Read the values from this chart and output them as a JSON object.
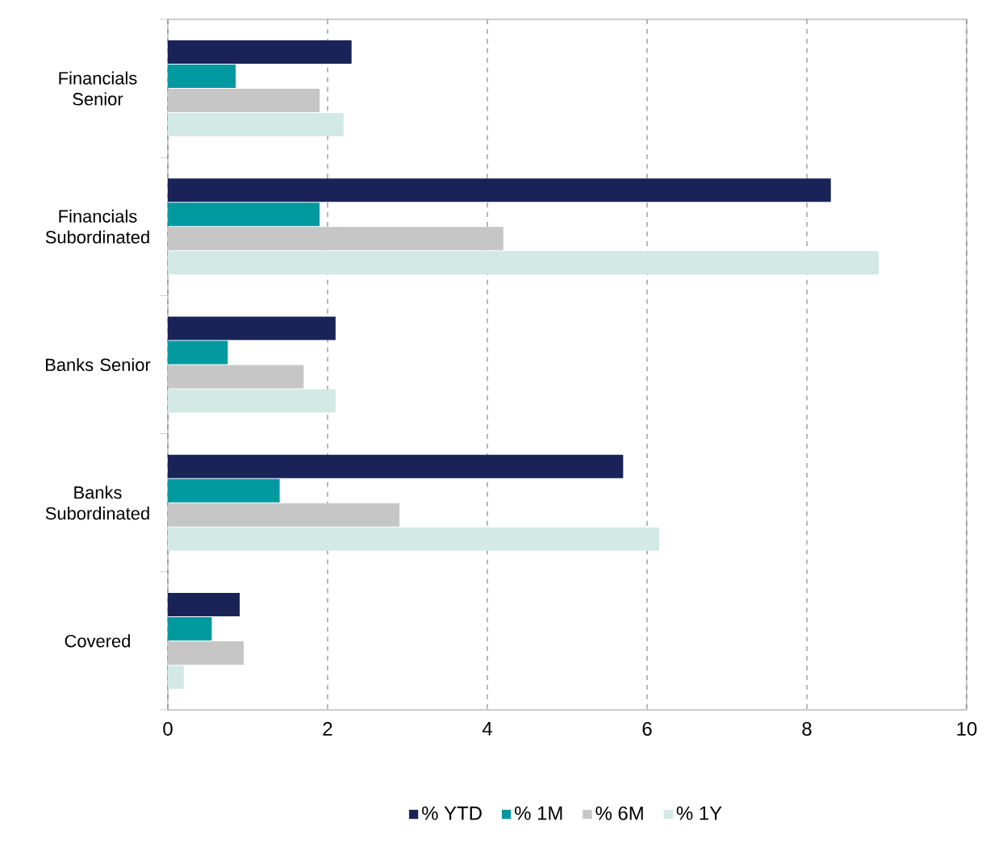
{
  "chart_data": {
    "type": "bar",
    "orientation": "horizontal",
    "categories": [
      "Financials Senior",
      "Financials Subordinated",
      "Banks Senior",
      "Banks Subordinated",
      "Covered"
    ],
    "series": [
      {
        "name": "% YTD",
        "color": "#1a2358",
        "values": [
          2.3,
          8.3,
          2.1,
          5.7,
          0.9
        ]
      },
      {
        "name": "% 1M",
        "color": "#00999f",
        "values": [
          0.85,
          1.9,
          0.75,
          1.4,
          0.55
        ]
      },
      {
        "name": "% 6M",
        "color": "#c6c6c6",
        "values": [
          1.9,
          4.2,
          1.7,
          2.9,
          0.95
        ]
      },
      {
        "name": "% 1Y",
        "color": "#d3e9e5",
        "values": [
          2.2,
          8.9,
          2.1,
          6.15,
          0.2
        ]
      }
    ],
    "xlim": [
      0,
      10
    ],
    "xticks": [
      0,
      2,
      4,
      6,
      8,
      10
    ],
    "grid": "x",
    "legend": "bottom"
  }
}
